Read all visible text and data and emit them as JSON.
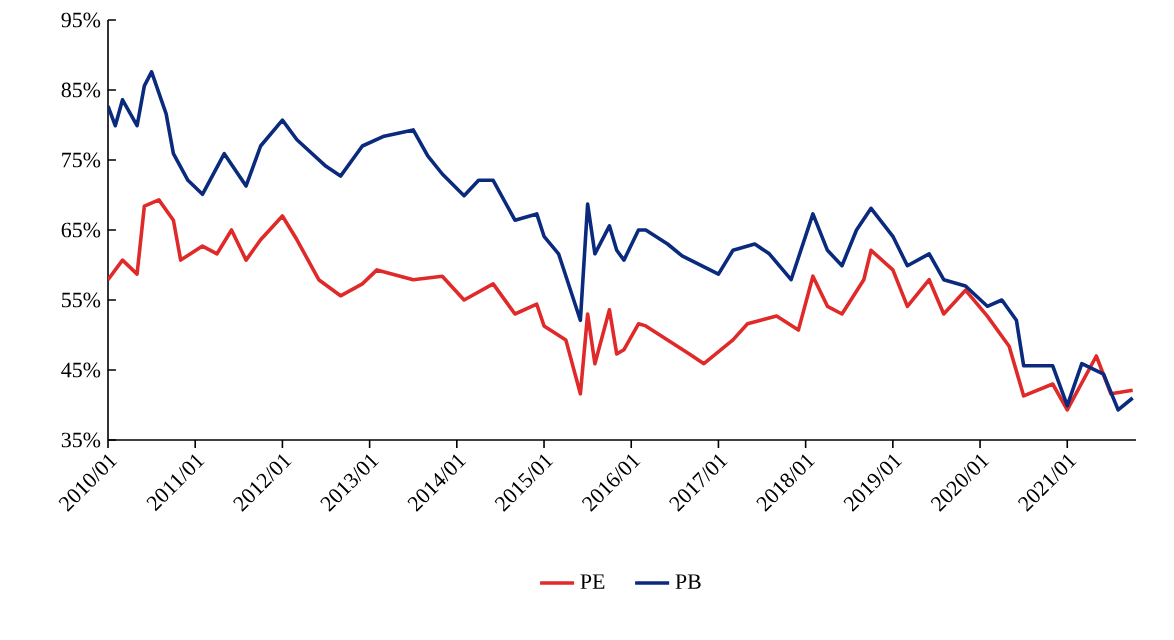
{
  "chart_data": {
    "type": "line",
    "xlim": [
      "2010-01",
      "2021-10-15"
    ],
    "xticks": [
      {
        "value": "2010-01",
        "label": "2010/01"
      },
      {
        "value": "2011-01",
        "label": "2011/01"
      },
      {
        "value": "2012-01",
        "label": "2012/01"
      },
      {
        "value": "2013-01",
        "label": "2013/01"
      },
      {
        "value": "2014-01",
        "label": "2014/01"
      },
      {
        "value": "2015-01",
        "label": "2015/01"
      },
      {
        "value": "2016-01",
        "label": "2016/01"
      },
      {
        "value": "2017-01",
        "label": "2017/01"
      },
      {
        "value": "2018-01",
        "label": "2018/01"
      },
      {
        "value": "2019-01",
        "label": "2019/01"
      },
      {
        "value": "2020-01",
        "label": "2020/01"
      },
      {
        "value": "2021-01",
        "label": "2021/01"
      }
    ],
    "ylim": [
      35,
      95
    ],
    "yticks": [
      {
        "value": 35,
        "label": "35%"
      },
      {
        "value": 45,
        "label": "45%"
      },
      {
        "value": 55,
        "label": "55%"
      },
      {
        "value": 65,
        "label": "65%"
      },
      {
        "value": 75,
        "label": "75%"
      },
      {
        "value": 85,
        "label": "85%"
      },
      {
        "value": 95,
        "label": "95%"
      }
    ],
    "legend": "bottom",
    "marker": "none",
    "line_style": "solid",
    "series": [
      {
        "name": "PE",
        "color": "#e02a2a",
        "x": [
          "2010-01",
          "2010-03",
          "2010-05",
          "2010-06",
          "2010-08",
          "2010-10",
          "2010-11",
          "2011-02",
          "2011-04",
          "2011-06",
          "2011-08",
          "2011-10",
          "2012-01",
          "2012-03",
          "2012-06",
          "2012-09",
          "2012-12",
          "2013-02",
          "2013-07",
          "2013-11",
          "2014-02",
          "2014-06",
          "2014-09",
          "2014-12",
          "2015-01",
          "2015-04",
          "2015-06",
          "2015-07",
          "2015-08",
          "2015-10",
          "2015-11",
          "2015-12",
          "2016-02",
          "2016-03",
          "2016-06",
          "2016-09",
          "2016-11",
          "2017-03",
          "2017-05",
          "2017-09",
          "2017-12",
          "2018-02",
          "2018-04",
          "2018-06",
          "2018-09",
          "2018-10",
          "2019-01",
          "2019-03",
          "2019-06",
          "2019-08",
          "2019-11",
          "2020-02",
          "2020-05",
          "2020-07",
          "2020-11",
          "2021-01",
          "2021-05",
          "2021-07",
          "2021-10"
        ],
        "values": [
          57.9,
          60.7,
          58.7,
          68.4,
          69.3,
          66.4,
          60.7,
          62.7,
          61.6,
          65,
          60.7,
          63.6,
          67,
          63.6,
          57.9,
          55.6,
          57.3,
          59.3,
          57.9,
          58.4,
          55,
          57.3,
          53,
          54.4,
          51.3,
          49.3,
          41.6,
          53,
          45.9,
          53.6,
          47.3,
          47.9,
          51.6,
          51.3,
          49.3,
          47.3,
          45.9,
          49.3,
          51.6,
          52.7,
          50.7,
          58.4,
          54.1,
          53,
          57.9,
          62.1,
          59.3,
          54.1,
          57.9,
          53,
          56.4,
          52.7,
          48.4,
          41.3,
          43,
          39.3,
          47,
          41.6,
          42.1
        ]
      },
      {
        "name": "PB",
        "color": "#0a2a7d",
        "x": [
          "2010-01",
          "2010-02",
          "2010-03",
          "2010-05",
          "2010-06",
          "2010-07",
          "2010-09",
          "2010-10",
          "2010-12",
          "2011-02",
          "2011-05",
          "2011-08",
          "2011-10",
          "2012-01",
          "2012-03",
          "2012-07",
          "2012-09",
          "2012-12",
          "2013-03",
          "2013-07",
          "2013-09",
          "2013-11",
          "2014-02",
          "2014-04",
          "2014-06",
          "2014-09",
          "2014-12",
          "2015-01",
          "2015-03",
          "2015-06",
          "2015-07",
          "2015-08",
          "2015-10",
          "2015-11",
          "2015-12",
          "2016-02",
          "2016-03",
          "2016-06",
          "2016-08",
          "2017-01",
          "2017-03",
          "2017-06",
          "2017-08",
          "2017-11",
          "2018-02",
          "2018-04",
          "2018-06",
          "2018-08",
          "2018-10",
          "2019-01",
          "2019-03",
          "2019-06",
          "2019-08",
          "2019-11",
          "2020-02",
          "2020-04",
          "2020-06",
          "2020-07",
          "2020-11",
          "2021-01",
          "2021-03",
          "2021-06",
          "2021-08",
          "2021-10"
        ],
        "values": [
          82.7,
          79.9,
          83.6,
          79.9,
          85.6,
          87.6,
          81.6,
          75.9,
          72.1,
          70.1,
          75.9,
          71.3,
          77,
          80.7,
          77.9,
          74.1,
          72.7,
          77,
          78.4,
          79.3,
          75.6,
          73,
          69.9,
          72.1,
          72.1,
          66.4,
          67.3,
          64.1,
          61.6,
          52.1,
          68.7,
          61.6,
          65.6,
          62.1,
          60.7,
          65,
          65,
          63,
          61.3,
          58.7,
          62.1,
          63,
          61.6,
          57.9,
          67.3,
          62.1,
          59.9,
          65,
          68.1,
          64.1,
          59.9,
          61.6,
          57.9,
          57,
          54.1,
          55,
          52.1,
          45.6,
          45.6,
          39.9,
          45.9,
          44.4,
          39.3,
          41
        ]
      }
    ]
  }
}
